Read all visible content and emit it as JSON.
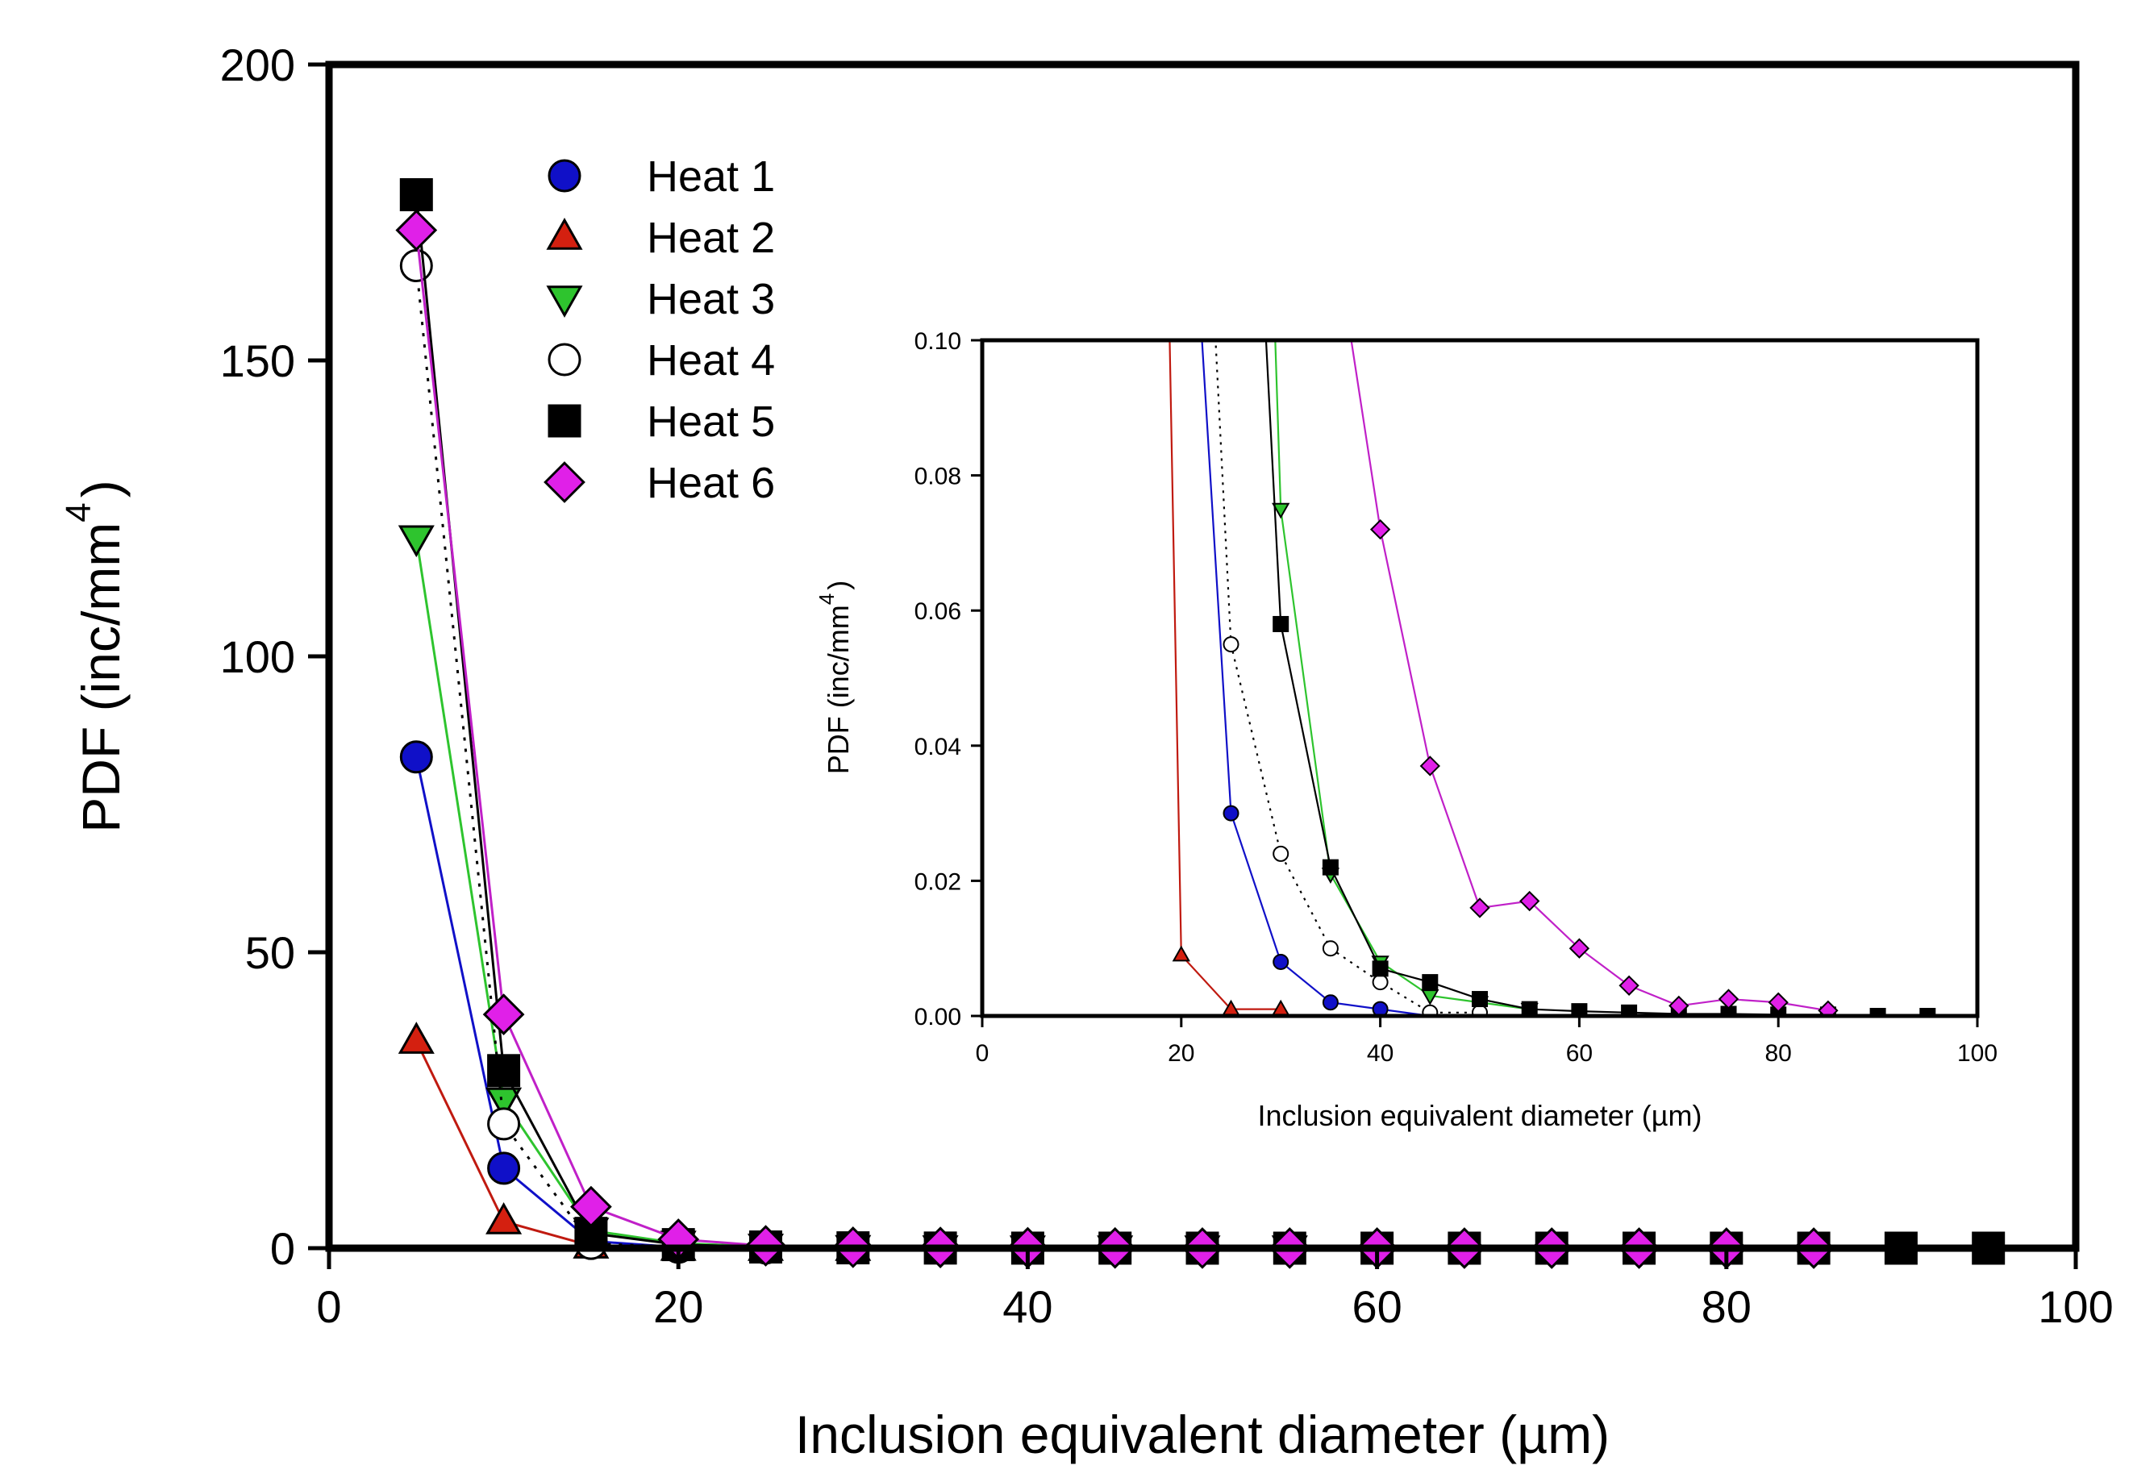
{
  "chart_data": [
    {
      "id": "main",
      "type": "line",
      "xlabel": "Inclusion equivalent diameter (µm)",
      "ylabel_main": "PDF (inc/mm",
      "ylabel_sup": "4",
      "ylabel_close": ")",
      "xlim": [
        0,
        100
      ],
      "ylim": [
        0,
        200
      ],
      "xticks": [
        0,
        20,
        40,
        60,
        80,
        100
      ],
      "yticks": [
        0,
        50,
        100,
        150,
        200
      ],
      "grid": false,
      "legend_position": "top-left",
      "series": [
        {
          "name": "Heat 1",
          "marker": "circle",
          "fill": "#1010c8",
          "line": "#1010c8",
          "dash": "",
          "x": [
            5,
            10,
            15,
            20,
            25,
            30,
            35,
            40,
            45
          ],
          "y": [
            83,
            13.5,
            1.2,
            0.15,
            0.03,
            0.008,
            0.002,
            0.001,
            0
          ]
        },
        {
          "name": "Heat 2",
          "marker": "triangle-up",
          "fill": "#d42010",
          "line": "#c01a10",
          "dash": "",
          "x": [
            5,
            10,
            15,
            20,
            25,
            30
          ],
          "y": [
            35,
            4.5,
            0.4,
            0.009,
            0.001,
            0.001
          ]
        },
        {
          "name": "Heat 3",
          "marker": "triangle-down",
          "fill": "#2ec42e",
          "line": "#2ec42e",
          "dash": "",
          "x": [
            5,
            10,
            15,
            20,
            25,
            30,
            35,
            40,
            45,
            50,
            55
          ],
          "y": [
            120,
            25,
            3,
            0.8,
            0.3,
            0.075,
            0.021,
            0.008,
            0.003,
            0.002,
            0.001
          ]
        },
        {
          "name": "Heat 4",
          "marker": "circle-open",
          "fill": "#ffffff",
          "line": "#000000",
          "dash": "4,10",
          "x": [
            5,
            10,
            15,
            20,
            25,
            30,
            35,
            40,
            45,
            50
          ],
          "y": [
            166,
            21,
            0.8,
            0.2,
            0.055,
            0.024,
            0.01,
            0.005,
            0.0005,
            0.0005
          ]
        },
        {
          "name": "Heat 5",
          "marker": "square",
          "fill": "#000000",
          "line": "#000000",
          "dash": "",
          "x": [
            5,
            10,
            15,
            20,
            25,
            30,
            35,
            40,
            45,
            50,
            55,
            60,
            65,
            70,
            75,
            80,
            85,
            90,
            95
          ],
          "y": [
            178,
            30,
            2.5,
            0.6,
            0.2,
            0.058,
            0.022,
            0.007,
            0.005,
            0.0025,
            0.001,
            0.0007,
            0.0005,
            0.0003,
            0.0003,
            0.0002,
            0.0002,
            0,
            0
          ]
        },
        {
          "name": "Heat 6",
          "marker": "diamond",
          "fill": "#e020e8",
          "line": "#c020c8",
          "dash": "",
          "x": [
            5,
            10,
            15,
            20,
            25,
            30,
            35,
            40,
            45,
            50,
            55,
            60,
            65,
            70,
            75,
            80,
            85
          ],
          "y": [
            172,
            39.5,
            7,
            1.5,
            0.4,
            0.15,
            0.12,
            0.072,
            0.037,
            0.016,
            0.017,
            0.01,
            0.0045,
            0.0015,
            0.0025,
            0.002,
            0.0008
          ]
        }
      ]
    },
    {
      "id": "inset",
      "type": "line",
      "xlabel": "Inclusion equivalent diameter (µm)",
      "ylabel_main": "PDF (inc/mm",
      "ylabel_sup": "4",
      "ylabel_close": ")",
      "xlim": [
        0,
        100
      ],
      "ylim": [
        0,
        0.1
      ],
      "xticks": [
        0,
        20,
        40,
        60,
        80,
        100
      ],
      "yticks": [
        0,
        0.02,
        0.04,
        0.06,
        0.08,
        0.1
      ],
      "ytick_labels": [
        "0.00",
        "0.02",
        "0.04",
        "0.06",
        "0.08",
        "0.10"
      ],
      "grid": false,
      "series_from": "main"
    }
  ]
}
